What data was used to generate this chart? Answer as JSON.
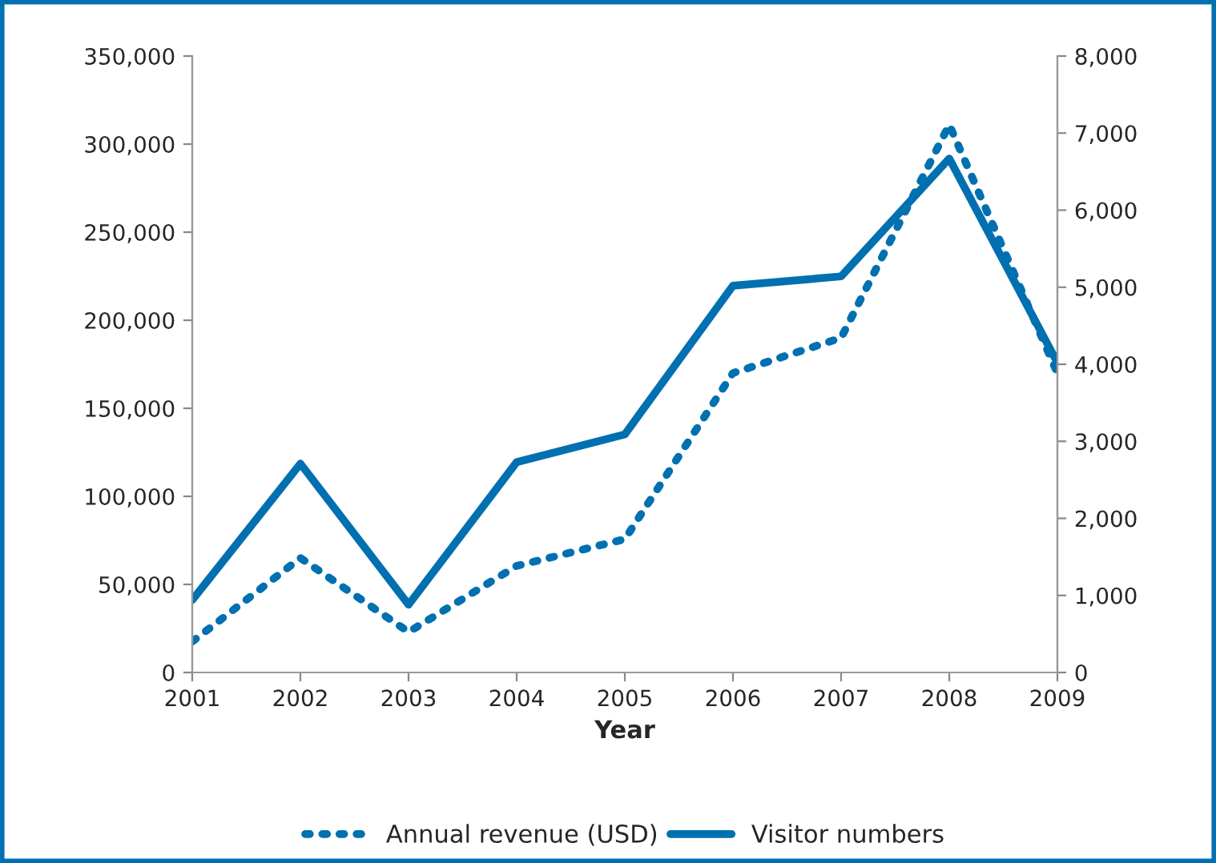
{
  "chart_data": {
    "type": "line",
    "xlabel": "Year",
    "x": [
      2001,
      2002,
      2003,
      2004,
      2005,
      2006,
      2007,
      2008,
      2009
    ],
    "xlim": [
      2001,
      2009
    ],
    "xticks": [
      2001,
      2002,
      2003,
      2004,
      2005,
      2006,
      2007,
      2008,
      2009
    ],
    "ylim": [
      0,
      350000
    ],
    "yticks": [
      0,
      {
        "value": 50000,
        "label": "50,000"
      },
      {
        "value": 100000,
        "label": "100,000"
      },
      {
        "value": 150000,
        "label": "150,000"
      },
      {
        "value": 200000,
        "label": "200,000"
      },
      {
        "value": 250000,
        "label": "250,000"
      },
      {
        "value": 300000,
        "label": "300,000"
      },
      {
        "value": 350000,
        "label": "350,000"
      }
    ],
    "y2lim": [
      0,
      8000
    ],
    "y2ticks": [
      0,
      {
        "value": 1000,
        "label": "1,000"
      },
      {
        "value": 2000,
        "label": "2,000"
      },
      {
        "value": 3000,
        "label": "3,000"
      },
      {
        "value": 4000,
        "label": "4,000"
      },
      {
        "value": 5000,
        "label": "5,000"
      },
      {
        "value": 6000,
        "label": "6,000"
      },
      {
        "value": 7000,
        "label": "7,000"
      },
      {
        "value": 8000,
        "label": "8,000"
      }
    ],
    "grid": false,
    "legend": "bottom",
    "series": [
      {
        "name": "Annual revenue (USD)",
        "color": "#0070b0",
        "line_style": "dotted",
        "values": [
          17500,
          65000,
          23000,
          60500,
          75700,
          170000,
          190000,
          311000,
          170000
        ]
      },
      {
        "name": "Visitor numbers",
        "color": "#0070b0",
        "line_style": "solid",
        "axis": "y2",
        "values": [
          940,
          2710,
          880,
          2730,
          3090,
          5020,
          5140,
          6670,
          4020
        ]
      }
    ]
  }
}
